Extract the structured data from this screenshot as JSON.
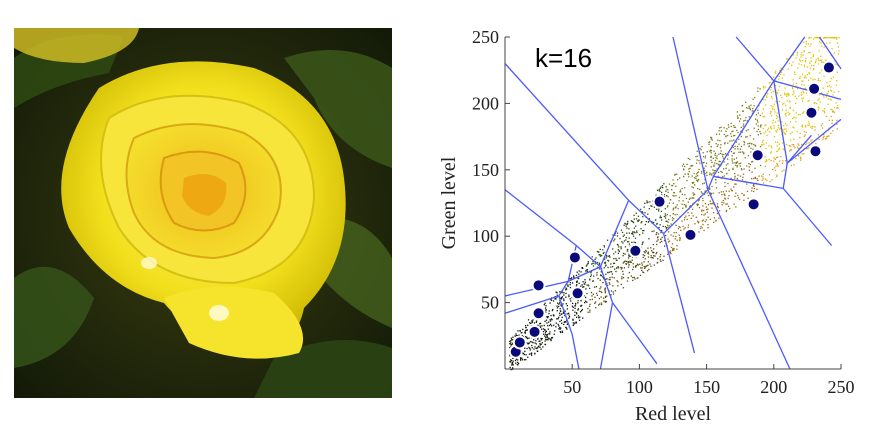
{
  "chart_data": {
    "type": "scatter",
    "title": "",
    "annotation": "k=16",
    "xlabel": "Red level",
    "ylabel": "Green level",
    "xlim": [
      0,
      250
    ],
    "ylim": [
      0,
      250
    ],
    "xticks": [
      50,
      100,
      150,
      200,
      250
    ],
    "yticks": [
      50,
      100,
      150,
      200,
      250
    ],
    "grid": false,
    "centroid_color": "#0a0a7a",
    "edge_color": "#4a5aff",
    "centroids": [
      {
        "x": 8,
        "y": 13
      },
      {
        "x": 11,
        "y": 20
      },
      {
        "x": 22,
        "y": 28
      },
      {
        "x": 25,
        "y": 42
      },
      {
        "x": 25,
        "y": 63
      },
      {
        "x": 52,
        "y": 84
      },
      {
        "x": 54,
        "y": 57
      },
      {
        "x": 97,
        "y": 89
      },
      {
        "x": 115,
        "y": 126
      },
      {
        "x": 138,
        "y": 101
      },
      {
        "x": 185,
        "y": 124
      },
      {
        "x": 188,
        "y": 161
      },
      {
        "x": 231,
        "y": 164
      },
      {
        "x": 228,
        "y": 193
      },
      {
        "x": 230,
        "y": 211
      },
      {
        "x": 241,
        "y": 227
      }
    ],
    "voronoi_edges": [
      [
        [
          0,
          230
        ],
        [
          92,
          127
        ]
      ],
      [
        [
          92,
          127
        ],
        [
          118,
          102
        ]
      ],
      [
        [
          92,
          127
        ],
        [
          71,
          77
        ]
      ],
      [
        [
          0,
          135
        ],
        [
          53,
          93
        ]
      ],
      [
        [
          53,
          93
        ],
        [
          71,
          77
        ]
      ],
      [
        [
          71,
          77
        ],
        [
          47,
          66
        ]
      ],
      [
        [
          53,
          93
        ],
        [
          47,
          66
        ]
      ],
      [
        [
          0,
          55
        ],
        [
          47,
          66
        ]
      ],
      [
        [
          47,
          66
        ],
        [
          40,
          55
        ]
      ],
      [
        [
          0,
          42
        ],
        [
          40,
          55
        ]
      ],
      [
        [
          40,
          55
        ],
        [
          50,
          26
        ]
      ],
      [
        [
          71,
          77
        ],
        [
          80,
          50
        ]
      ],
      [
        [
          50,
          26
        ],
        [
          55,
          0
        ]
      ],
      [
        [
          80,
          50
        ],
        [
          71,
          0
        ]
      ],
      [
        [
          80,
          50
        ],
        [
          113,
          4
        ]
      ],
      [
        [
          118,
          102
        ],
        [
          141,
          12
        ]
      ],
      [
        [
          118,
          102
        ],
        [
          151,
          135
        ]
      ],
      [
        [
          125,
          250
        ],
        [
          151,
          135
        ]
      ],
      [
        [
          151,
          135
        ],
        [
          212,
          0
        ]
      ],
      [
        [
          151,
          135
        ],
        [
          155,
          145
        ]
      ],
      [
        [
          155,
          145
        ],
        [
          207,
          136
        ]
      ],
      [
        [
          207,
          136
        ],
        [
          243,
          93
        ]
      ],
      [
        [
          207,
          136
        ],
        [
          210,
          155
        ]
      ],
      [
        [
          155,
          145
        ],
        [
          200,
          217
        ]
      ],
      [
        [
          210,
          155
        ],
        [
          200,
          217
        ]
      ],
      [
        [
          200,
          217
        ],
        [
          172,
          250
        ]
      ],
      [
        [
          210,
          155
        ],
        [
          250,
          188
        ]
      ],
      [
        [
          210,
          155
        ],
        [
          228,
          176
        ]
      ],
      [
        [
          200,
          217
        ],
        [
          223,
          250
        ]
      ],
      [
        [
          200,
          217
        ],
        [
          250,
          203
        ]
      ],
      [
        [
          250,
          226
        ],
        [
          234,
          250
        ]
      ]
    ]
  }
}
